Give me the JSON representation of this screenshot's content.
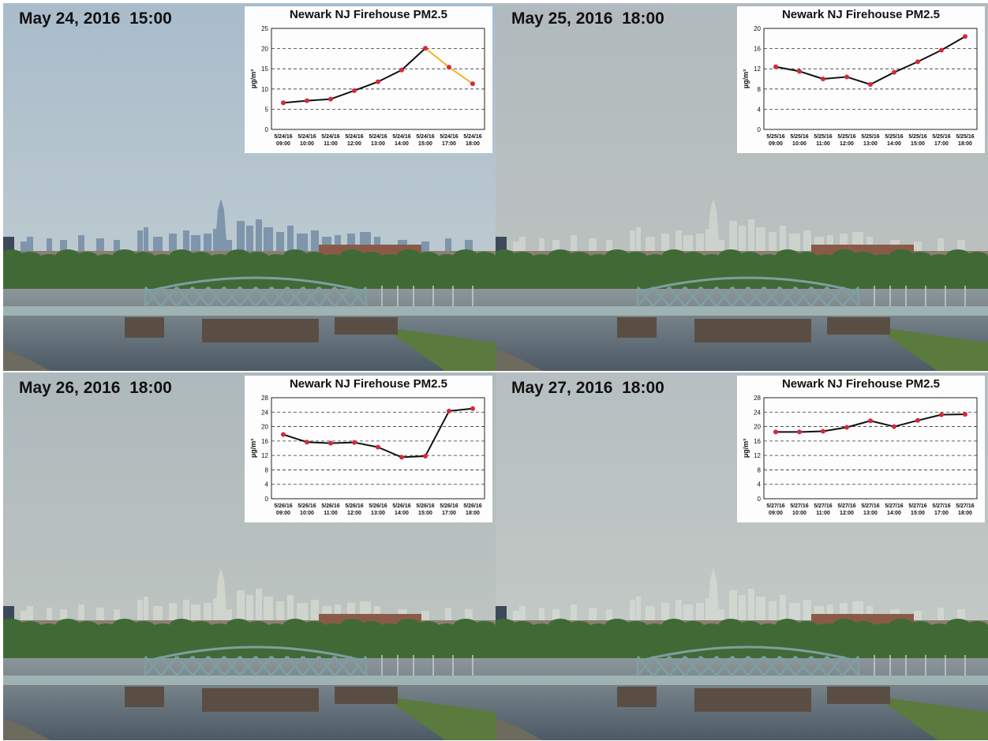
{
  "panels": [
    {
      "stamp": "May 24, 2016  15:00",
      "sky": {
        "top": "#a9bccb",
        "bottom": "#c4cfd2"
      },
      "city": "#7f95ab",
      "chart_data": {
        "type": "line",
        "title": "Newark NJ Firehouse PM2.5",
        "ylabel": "µg/m³",
        "ylim": [
          0,
          25
        ],
        "yticks": [
          0,
          5,
          10,
          15,
          20,
          25
        ],
        "grid": "dashed horizontal",
        "x": [
          "5/24/16 09:00",
          "5/24/16 10:00",
          "5/24/16 11:00",
          "5/24/16 12:00",
          "5/24/16 13:00",
          "5/24/16 14:00",
          "5/24/16 15:00",
          "5/24/16 17:00",
          "5/24/16 18:00"
        ],
        "values": [
          6.6,
          7.1,
          7.5,
          9.6,
          11.8,
          14.7,
          20.1,
          15.4,
          11.3
        ],
        "highlight_from_index": 6,
        "line_color": "#111111",
        "highlight_color": "#f0b323",
        "marker_color": "#d6283c"
      }
    },
    {
      "stamp": "May 25, 2016  18:00",
      "sky": {
        "top": "#b1babe",
        "bottom": "#bec3bf"
      },
      "city": "#cdd2cc",
      "chart_data": {
        "type": "line",
        "title": "Newark NJ Firehouse PM2.5",
        "ylabel": "µg/m³",
        "ylim": [
          0,
          20
        ],
        "yticks": [
          0,
          4,
          8,
          12,
          16,
          20
        ],
        "grid": "dashed horizontal",
        "x": [
          "5/25/16 09:00",
          "5/25/16 10:00",
          "5/25/16 11:00",
          "5/25/16 12:00",
          "5/25/16 13:00",
          "5/25/16 14:00",
          "5/25/16 15:00",
          "5/25/16 17:00",
          "5/25/16 18:00"
        ],
        "values": [
          12.4,
          11.5,
          10.0,
          10.4,
          8.9,
          11.3,
          13.4,
          15.7,
          18.4
        ],
        "highlight_from_index": null,
        "line_color": "#111111",
        "highlight_color": "#f0b323",
        "marker_color": "#d6283c"
      }
    },
    {
      "stamp": "May 26, 2016  18:00",
      "sky": {
        "top": "#aeb9bd",
        "bottom": "#c3c8c1"
      },
      "city": "#cfd4cd",
      "chart_data": {
        "type": "line",
        "title": "Newark NJ Firehouse PM2.5",
        "ylabel": "µg/m³",
        "ylim": [
          0,
          28
        ],
        "yticks": [
          0,
          4,
          8,
          12,
          16,
          20,
          24,
          28
        ],
        "grid": "dashed horizontal",
        "x": [
          "5/26/16 09:00",
          "5/26/16 10:00",
          "5/26/16 11:00",
          "5/26/16 12:00",
          "5/26/16 13:00",
          "5/26/16 14:00",
          "5/26/16 15:00",
          "5/26/16 17:00",
          "5/26/16 18:00"
        ],
        "values": [
          17.8,
          15.7,
          15.4,
          15.6,
          14.3,
          11.5,
          11.8,
          24.3,
          25.0
        ],
        "highlight_from_index": null,
        "line_color": "#111111",
        "highlight_color": "#f0b323",
        "marker_color": "#d6283c"
      }
    },
    {
      "stamp": "May 27, 2016  18:00",
      "sky": {
        "top": "#b5bfc2",
        "bottom": "#c8ccc5"
      },
      "city": "#d2d6d0",
      "chart_data": {
        "type": "line",
        "title": "Newark NJ Firehouse PM2.5",
        "ylabel": "µg/m³",
        "ylim": [
          0,
          28
        ],
        "yticks": [
          0,
          4,
          8,
          12,
          16,
          20,
          24,
          28
        ],
        "grid": "dashed horizontal",
        "x": [
          "5/27/16 09:00",
          "5/27/16 10:00",
          "5/27/16 11:00",
          "5/27/16 12:00",
          "5/27/16 13:00",
          "5/27/16 14:00",
          "5/27/16 15:00",
          "5/27/16 17:00",
          "5/27/16 18:00"
        ],
        "values": [
          18.5,
          18.5,
          18.7,
          19.8,
          21.6,
          20.0,
          21.7,
          23.3,
          23.4
        ],
        "highlight_from_index": null,
        "line_color": "#111111",
        "highlight_color": "#f0b323",
        "marker_color": "#d6283c"
      }
    }
  ]
}
